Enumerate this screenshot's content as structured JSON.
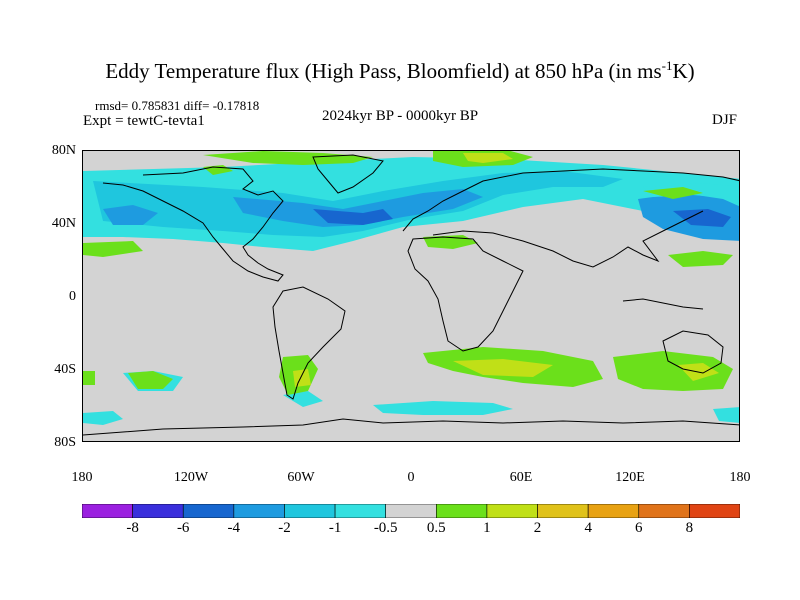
{
  "title_main": "Eddy Temperature flux (High Pass, Bloomfield) at 850 hPa (in ms",
  "title_sup": "-1",
  "title_end": "K)",
  "stats": "rmsd= 0.785831 diff= -0.17818",
  "experiment": "Expt = tewtC-tevta1",
  "period": "2024kyr BP - 0000kyr BP",
  "season": "DJF",
  "lat_labels": [
    "80N",
    "40N",
    "0",
    "40S",
    "80S"
  ],
  "lon_labels": [
    "180",
    "120W",
    "60W",
    "0",
    "60E",
    "120E",
    "180"
  ],
  "colorbar": {
    "labels": [
      "-8",
      "-6",
      "-4",
      "-2",
      "-1",
      "-0.5",
      "0.5",
      "1",
      "2",
      "4",
      "6",
      "8"
    ],
    "colors": [
      "#9b20e0",
      "#3a2fdc",
      "#1766cf",
      "#1e9be0",
      "#1fc6de",
      "#33e0e0",
      "#d3d3d3",
      "#6be01b",
      "#c0e017",
      "#e0c21a",
      "#e8a213",
      "#e0731a",
      "#e04414"
    ]
  },
  "anomaly_colors": {
    "land_ocean_background": "#d3d3d3",
    "negative_light": "#33e0e0",
    "negative_mid": "#1fc6de",
    "negative_strong": "#1e9be0",
    "negative_deep": "#1766cf",
    "positive_light": "#6be01b",
    "positive_mid": "#c0e017"
  }
}
